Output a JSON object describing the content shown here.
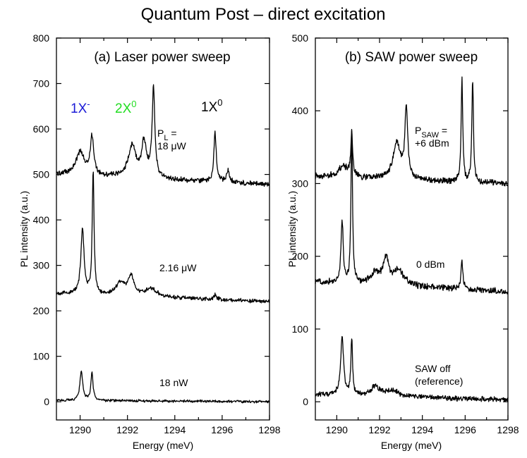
{
  "figure_title": "Quantum Post – direct excitation",
  "chart_data": [
    {
      "type": "line",
      "title": "(a) Laser power sweep",
      "xlabel": "Energy (meV)",
      "ylabel": "PL intensity (a.u.)",
      "xlim": [
        1289,
        1298
      ],
      "ylim": [
        -40,
        800
      ],
      "x_ticks": [
        "1290",
        "1292",
        "1294",
        "1296",
        "1298"
      ],
      "y_ticks": [
        "0",
        "100",
        "200",
        "300",
        "400",
        "500",
        "600",
        "700",
        "800"
      ],
      "peak_labels": [
        {
          "text": "1X",
          "sup": "-",
          "color": "#1a1ad6"
        },
        {
          "text": "2X",
          "sup": "0",
          "color": "#22dd22"
        },
        {
          "text": "1X",
          "sup": "0",
          "color": "#000000"
        }
      ],
      "series": [
        {
          "label_lines": [
            "P",
            "L",
            " =",
            "18 μW"
          ],
          "baseline": 500,
          "slope": -2.5,
          "noise": 4,
          "peaks": [
            {
              "x": 1290.0,
              "h": 50,
              "w": 0.22
            },
            {
              "x": 1290.5,
              "h": 80,
              "w": 0.09
            },
            {
              "x": 1292.2,
              "h": 68,
              "w": 0.2
            },
            {
              "x": 1292.7,
              "h": 75,
              "w": 0.12
            },
            {
              "x": 1293.1,
              "h": 195,
              "w": 0.07
            },
            {
              "x": 1295.7,
              "h": 110,
              "w": 0.06
            },
            {
              "x": 1296.25,
              "h": 25,
              "w": 0.08
            }
          ]
        },
        {
          "label": "2.16 μW",
          "baseline": 238,
          "slope": -2.0,
          "noise": 3,
          "peaks": [
            {
              "x": 1290.1,
              "h": 145,
              "w": 0.08
            },
            {
              "x": 1290.55,
              "h": 272,
              "w": 0.045
            },
            {
              "x": 1291.7,
              "h": 28,
              "w": 0.22
            },
            {
              "x": 1292.15,
              "h": 42,
              "w": 0.15
            },
            {
              "x": 1293.0,
              "h": 18,
              "w": 0.3
            },
            {
              "x": 1295.7,
              "h": 10,
              "w": 0.08
            }
          ]
        },
        {
          "label": "18 nW",
          "baseline": 3,
          "slope": -0.3,
          "noise": 2,
          "peaks": [
            {
              "x": 1290.05,
              "h": 65,
              "w": 0.07
            },
            {
              "x": 1290.5,
              "h": 60,
              "w": 0.055
            }
          ]
        }
      ]
    },
    {
      "type": "line",
      "title": "(b) SAW power sweep",
      "xlabel": "Energy (meV)",
      "ylabel": "PL intensity (a.u.)",
      "xlim": [
        1289,
        1298
      ],
      "ylim": [
        -25,
        500
      ],
      "x_ticks": [
        "1290",
        "1292",
        "1294",
        "1296",
        "1298"
      ],
      "y_ticks": [
        "0",
        "100",
        "200",
        "300",
        "400",
        "500"
      ],
      "series": [
        {
          "label_lines": [
            "P",
            "SAW",
            " =",
            "+6 dBm"
          ],
          "baseline": 310,
          "slope": -1.2,
          "noise": 3,
          "peaks": [
            {
              "x": 1290.3,
              "h": 15,
              "w": 0.25
            },
            {
              "x": 1290.7,
              "h": 60,
              "w": 0.05
            },
            {
              "x": 1292.8,
              "h": 50,
              "w": 0.2
            },
            {
              "x": 1293.25,
              "h": 95,
              "w": 0.08
            },
            {
              "x": 1295.85,
              "h": 140,
              "w": 0.045
            },
            {
              "x": 1296.35,
              "h": 140,
              "w": 0.045
            }
          ]
        },
        {
          "label": "0 dBm",
          "baseline": 165,
          "slope": -1.5,
          "noise": 3,
          "peaks": [
            {
              "x": 1290.25,
              "h": 85,
              "w": 0.06
            },
            {
              "x": 1290.7,
              "h": 205,
              "w": 0.045
            },
            {
              "x": 1291.8,
              "h": 15,
              "w": 0.25
            },
            {
              "x": 1292.3,
              "h": 35,
              "w": 0.15
            },
            {
              "x": 1292.9,
              "h": 20,
              "w": 0.3
            },
            {
              "x": 1295.85,
              "h": 40,
              "w": 0.05
            }
          ]
        },
        {
          "label_lines": [
            "SAW off",
            "(reference)"
          ],
          "baseline": 10,
          "slope": -0.8,
          "noise": 2.5,
          "peaks": [
            {
              "x": 1290.25,
              "h": 80,
              "w": 0.08
            },
            {
              "x": 1290.7,
              "h": 78,
              "w": 0.045
            },
            {
              "x": 1291.8,
              "h": 12,
              "w": 0.25
            },
            {
              "x": 1292.6,
              "h": 8,
              "w": 0.35
            }
          ]
        }
      ]
    }
  ]
}
